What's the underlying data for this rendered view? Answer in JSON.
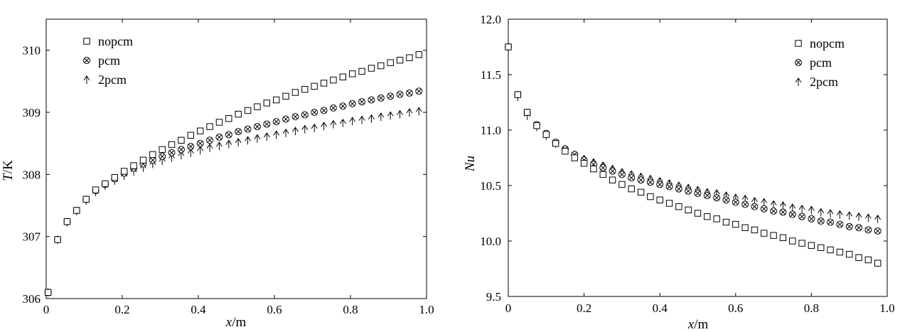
{
  "chart_data": [
    {
      "type": "scatter",
      "xlabel": "x/m",
      "xlabel_var": "x",
      "xlabel_unit": "/m",
      "ylabel": "T/K",
      "ylabel_var": "T",
      "ylabel_unit": "/K",
      "xlim": [
        0,
        1.0
      ],
      "ylim": [
        306,
        310.5
      ],
      "xticks": [
        0,
        0.2,
        0.4,
        0.6,
        0.8,
        1.0
      ],
      "xtick_labels": [
        "0",
        "0.2",
        "0.4",
        "0.6",
        "0.8",
        "1.0"
      ],
      "yticks": [
        306,
        307,
        308,
        309,
        310
      ],
      "ytick_labels": [
        "306",
        "307",
        "308",
        "309",
        "310"
      ],
      "grid": false,
      "legend_position": "top-left",
      "x": [
        0.005,
        0.03,
        0.055,
        0.08,
        0.105,
        0.13,
        0.155,
        0.18,
        0.205,
        0.23,
        0.255,
        0.28,
        0.305,
        0.33,
        0.355,
        0.38,
        0.405,
        0.43,
        0.455,
        0.48,
        0.505,
        0.53,
        0.555,
        0.58,
        0.605,
        0.63,
        0.655,
        0.68,
        0.705,
        0.73,
        0.755,
        0.78,
        0.805,
        0.83,
        0.855,
        0.88,
        0.905,
        0.93,
        0.955,
        0.98
      ],
      "series": [
        {
          "name": "nopcm",
          "marker": "square",
          "values": [
            306.1,
            306.95,
            307.24,
            307.42,
            307.6,
            307.75,
            307.85,
            307.95,
            308.05,
            308.14,
            308.23,
            308.32,
            308.4,
            308.48,
            308.55,
            308.63,
            308.7,
            308.77,
            308.84,
            308.9,
            308.97,
            309.03,
            309.09,
            309.15,
            309.2,
            309.26,
            309.32,
            309.37,
            309.42,
            309.47,
            309.52,
            309.57,
            309.62,
            309.66,
            309.71,
            309.75,
            309.8,
            309.84,
            309.88,
            309.93
          ]
        },
        {
          "name": "pcm",
          "marker": "circle-x",
          "values": [
            306.1,
            306.95,
            307.24,
            307.42,
            307.6,
            307.74,
            307.84,
            307.93,
            308.02,
            308.1,
            308.17,
            308.23,
            308.29,
            308.35,
            308.4,
            308.45,
            308.5,
            308.55,
            308.6,
            308.64,
            308.69,
            308.73,
            308.77,
            308.81,
            308.85,
            308.89,
            308.93,
            308.96,
            309.0,
            309.03,
            309.07,
            309.1,
            309.14,
            309.17,
            309.2,
            309.23,
            309.26,
            309.29,
            309.31,
            309.34
          ]
        },
        {
          "name": "2pcm",
          "marker": "arrow-up",
          "values": [
            306.1,
            306.95,
            307.23,
            307.41,
            307.58,
            307.72,
            307.82,
            307.9,
            307.98,
            308.05,
            308.11,
            308.17,
            308.22,
            308.27,
            308.31,
            308.35,
            308.39,
            308.43,
            308.46,
            308.49,
            308.52,
            308.55,
            308.58,
            308.61,
            308.64,
            308.67,
            308.7,
            308.73,
            308.75,
            308.78,
            308.81,
            308.83,
            308.86,
            308.88,
            308.9,
            308.93,
            308.95,
            308.97,
            309.0,
            309.02
          ]
        }
      ]
    },
    {
      "type": "scatter",
      "xlabel": "x/m",
      "xlabel_var": "x",
      "xlabel_unit": "/m",
      "ylabel": "Nu",
      "ylabel_var": "Nu",
      "ylabel_unit": "",
      "xlim": [
        0,
        1.0
      ],
      "ylim": [
        9.5,
        12.0
      ],
      "xticks": [
        0,
        0.2,
        0.4,
        0.6,
        0.8,
        1.0
      ],
      "xtick_labels": [
        "0",
        "0.2",
        "0.4",
        "0.6",
        "0.8",
        "1.0"
      ],
      "yticks": [
        9.5,
        10.0,
        10.5,
        11.0,
        11.5,
        12.0
      ],
      "ytick_labels": [
        "9.5",
        "10.0",
        "10.5",
        "11.0",
        "11.5",
        "12.0"
      ],
      "grid": false,
      "legend_position": "top-right",
      "x": [
        0.0,
        0.025,
        0.05,
        0.075,
        0.1,
        0.125,
        0.15,
        0.175,
        0.2,
        0.225,
        0.25,
        0.275,
        0.3,
        0.325,
        0.35,
        0.375,
        0.4,
        0.425,
        0.45,
        0.475,
        0.5,
        0.525,
        0.55,
        0.575,
        0.6,
        0.625,
        0.65,
        0.675,
        0.7,
        0.725,
        0.75,
        0.775,
        0.8,
        0.825,
        0.85,
        0.875,
        0.9,
        0.925,
        0.95,
        0.975
      ],
      "series": [
        {
          "name": "nopcm",
          "marker": "square",
          "values": [
            11.75,
            11.32,
            11.16,
            11.04,
            10.96,
            10.88,
            10.81,
            10.75,
            10.7,
            10.65,
            10.6,
            10.55,
            10.51,
            10.47,
            10.44,
            10.4,
            10.37,
            10.34,
            10.31,
            10.28,
            10.25,
            10.22,
            10.2,
            10.17,
            10.15,
            10.12,
            10.1,
            10.07,
            10.05,
            10.03,
            10.0,
            9.98,
            9.96,
            9.94,
            9.92,
            9.9,
            9.88,
            9.85,
            9.83,
            9.8
          ]
        },
        {
          "name": "pcm",
          "marker": "circle-x",
          "values": [
            11.75,
            11.32,
            11.16,
            11.05,
            10.97,
            10.89,
            10.83,
            10.78,
            10.73,
            10.69,
            10.66,
            10.63,
            10.6,
            10.57,
            10.55,
            10.53,
            10.51,
            10.49,
            10.47,
            10.45,
            10.43,
            10.41,
            10.39,
            10.37,
            10.35,
            10.33,
            10.31,
            10.29,
            10.27,
            10.26,
            10.24,
            10.22,
            10.2,
            10.18,
            10.17,
            10.15,
            10.13,
            10.12,
            10.1,
            10.09
          ]
        },
        {
          "name": "2pcm",
          "marker": "arrow-up",
          "values": [
            11.75,
            11.3,
            11.13,
            11.03,
            10.95,
            10.88,
            10.83,
            10.78,
            10.74,
            10.71,
            10.68,
            10.65,
            10.62,
            10.6,
            10.58,
            10.56,
            10.54,
            10.52,
            10.5,
            10.48,
            10.46,
            10.44,
            10.43,
            10.41,
            10.39,
            10.38,
            10.36,
            10.35,
            10.33,
            10.32,
            10.3,
            10.29,
            10.28,
            10.26,
            10.25,
            10.24,
            10.23,
            10.22,
            10.21,
            10.2
          ]
        }
      ]
    }
  ]
}
